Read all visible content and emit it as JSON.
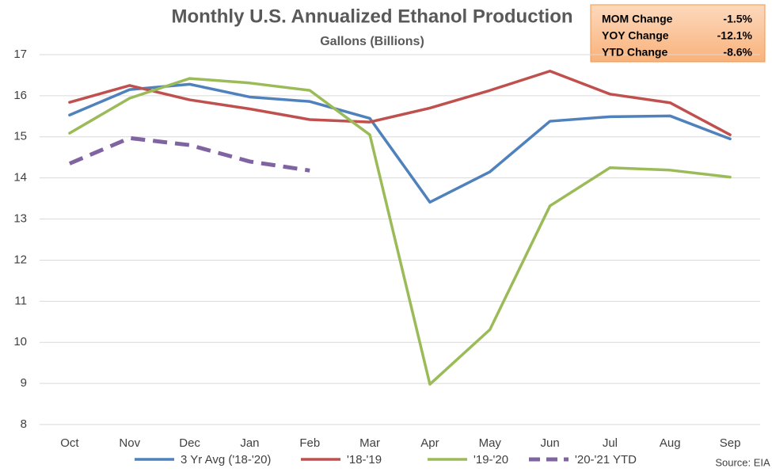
{
  "chart_data": {
    "type": "line",
    "title": "Monthly U.S. Annualized Ethanol Production",
    "subtitle": "Gallons (Billions)",
    "source": "Source: EIA",
    "categories": [
      "Oct",
      "Nov",
      "Dec",
      "Jan",
      "Feb",
      "Mar",
      "Apr",
      "May",
      "Jun",
      "Jul",
      "Aug",
      "Sep"
    ],
    "series": [
      {
        "name": "3 Yr Avg ('18-'20)",
        "color": "#4f81bd",
        "dashed": false,
        "values": [
          15.53,
          16.15,
          16.28,
          15.97,
          15.86,
          15.45,
          13.41,
          14.15,
          15.38,
          15.49,
          15.51,
          14.95
        ]
      },
      {
        "name": "'18-'19",
        "color": "#c0504d",
        "dashed": false,
        "values": [
          15.84,
          16.25,
          15.9,
          15.68,
          15.42,
          15.36,
          15.7,
          16.13,
          16.6,
          16.04,
          15.83,
          15.05
        ]
      },
      {
        "name": "'19-'20",
        "color": "#9bbb59",
        "dashed": false,
        "values": [
          15.09,
          15.94,
          16.42,
          16.31,
          16.13,
          15.05,
          8.98,
          10.31,
          13.32,
          14.25,
          14.19,
          14.02
        ]
      },
      {
        "name": "'20-'21 YTD",
        "color": "#8064a2",
        "dashed": true,
        "values": [
          14.35,
          14.97,
          14.8,
          14.4,
          14.18,
          null,
          null,
          null,
          null,
          null,
          null,
          null
        ]
      }
    ],
    "ylim": [
      8,
      17
    ],
    "yticks": [
      8,
      9,
      10,
      11,
      12,
      13,
      14,
      15,
      16,
      17
    ],
    "grid": true,
    "summary_box": [
      {
        "label": "MOM Change",
        "value": "-1.5%"
      },
      {
        "label": "YOY Change",
        "value": "-12.1%"
      },
      {
        "label": "YTD Change",
        "value": "-8.6%"
      }
    ]
  }
}
